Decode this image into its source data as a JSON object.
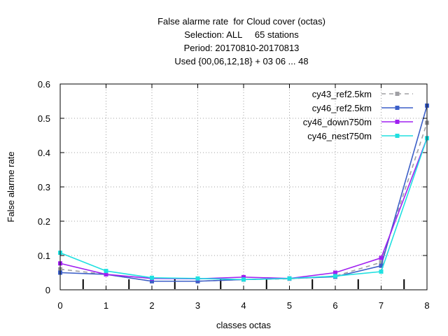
{
  "chart_data": {
    "type": "line",
    "title_lines": [
      "False alarme rate  for Cloud cover (octas)",
      "Selection: ALL     65 stations",
      "Period: 20170810-20170813",
      "Used {00,06,12,18} + 03 06 ... 48"
    ],
    "xlabel": "classes octas",
    "ylabel": "False alarme rate",
    "x": [
      0,
      1,
      2,
      3,
      4,
      5,
      6,
      7,
      8
    ],
    "xlim": [
      0,
      8
    ],
    "ylim": [
      0,
      0.6
    ],
    "xticks": [
      "0",
      "1",
      "2",
      "3",
      "4",
      "5",
      "6",
      "7",
      "8"
    ],
    "yticks": [
      "0",
      "0.1",
      "0.2",
      "0.3",
      "0.4",
      "0.5",
      "0.6"
    ],
    "grid": true,
    "legend_position": "top-right",
    "bin_marker_positions": [
      0.5,
      1.5,
      2.5,
      3.5,
      4.5,
      5.5,
      6.5,
      7.5
    ],
    "series": [
      {
        "name": "cy43_ref2.5km",
        "color": "#a0a0a4",
        "dashed": true,
        "marker": "square",
        "values": [
          0.06,
          0.045,
          0.025,
          0.025,
          0.03,
          0.032,
          0.04,
          0.08,
          0.487
        ]
      },
      {
        "name": "cy46_ref2.5km",
        "color": "#3c5fc8",
        "dashed": false,
        "marker": "square",
        "values": [
          0.05,
          0.045,
          0.025,
          0.025,
          0.03,
          0.033,
          0.038,
          0.07,
          0.537
        ]
      },
      {
        "name": "cy46_down750m",
        "color": "#a020f0",
        "dashed": false,
        "marker": "square",
        "values": [
          0.077,
          0.045,
          0.033,
          0.032,
          0.037,
          0.033,
          0.05,
          0.093,
          0.442
        ]
      },
      {
        "name": "cy46_nest750m",
        "color": "#20e0e0",
        "dashed": false,
        "marker": "square",
        "values": [
          0.108,
          0.055,
          0.035,
          0.033,
          0.03,
          0.033,
          0.04,
          0.053,
          0.442
        ]
      }
    ]
  }
}
